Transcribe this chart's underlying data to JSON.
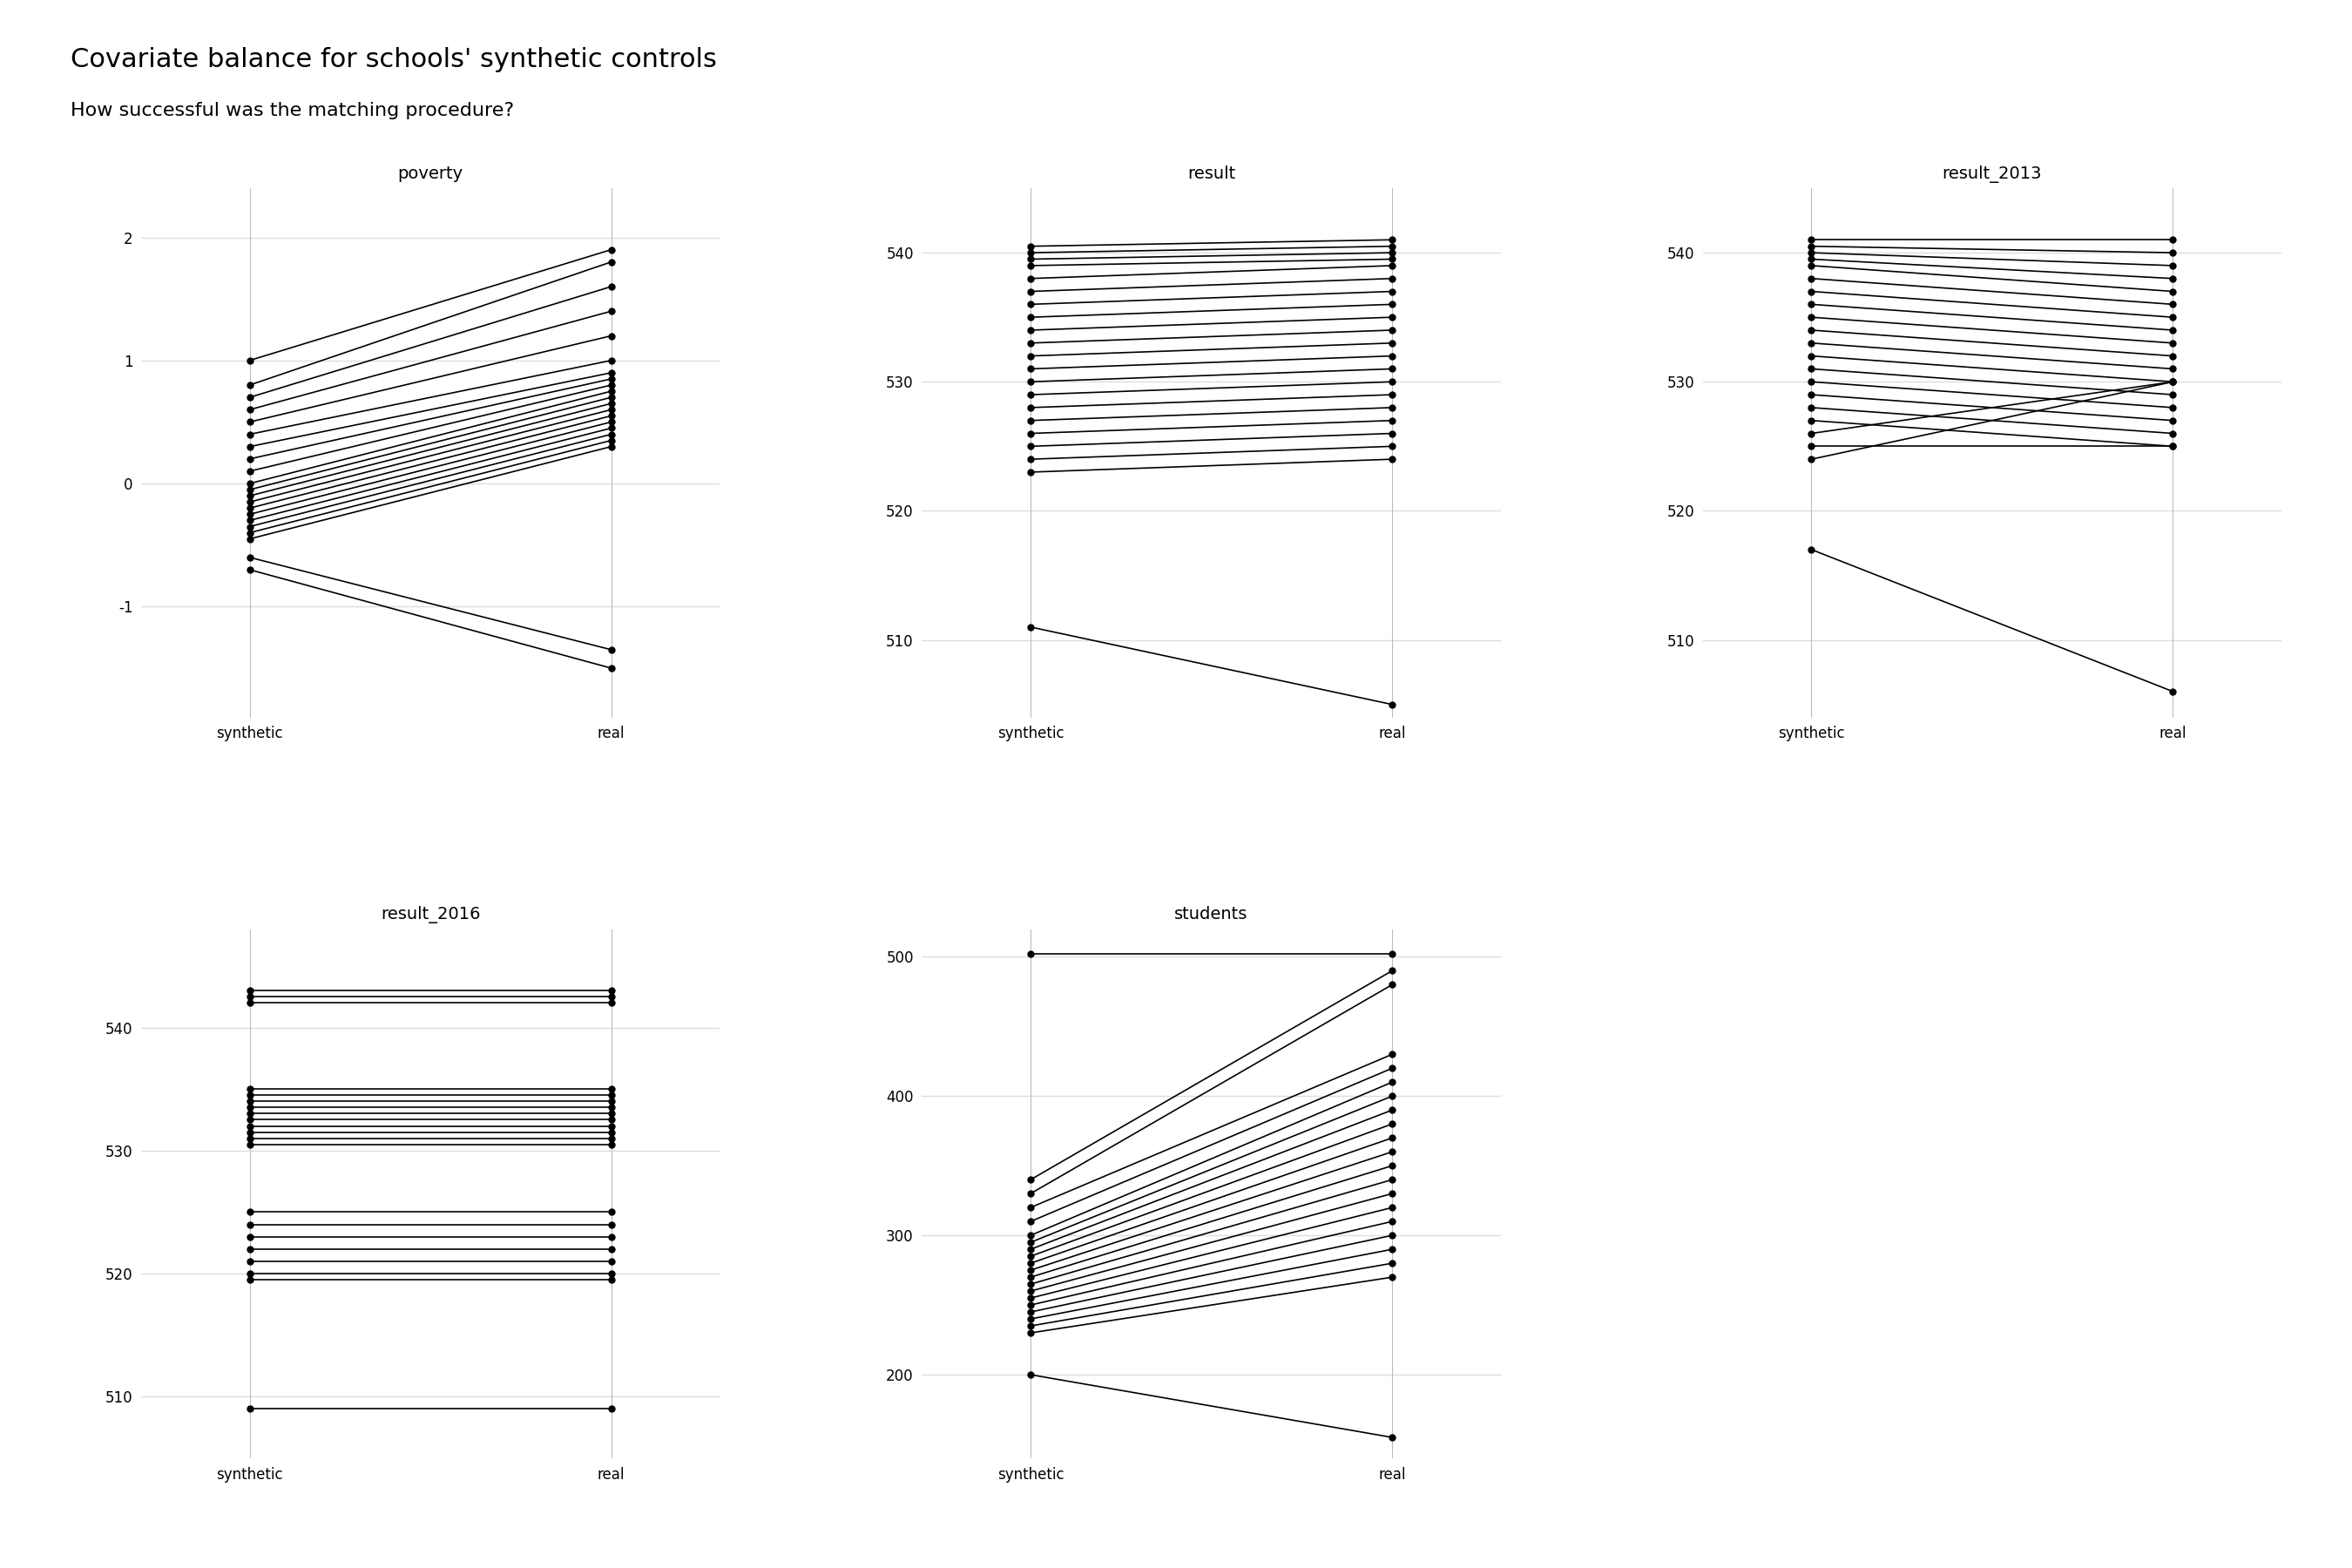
{
  "title": "Covariate balance for schools' synthetic controls",
  "subtitle": "How successful was the matching procedure?",
  "title_fontsize": 22,
  "subtitle_fontsize": 16,
  "subplot_title_fontsize": 14,
  "axis_label_fontsize": 12,
  "tick_fontsize": 12,
  "background_color": "#ffffff",
  "grid_color": "#dddddd",
  "line_color": "#000000",
  "marker_color": "#000000",
  "x_labels": [
    "synthetic",
    "real"
  ],
  "poverty_syn": [
    1.0,
    0.8,
    0.7,
    0.6,
    0.5,
    0.4,
    0.3,
    0.2,
    0.1,
    0.0,
    -0.05,
    -0.1,
    -0.15,
    -0.2,
    -0.25,
    -0.3,
    -0.35,
    -0.4,
    -0.45,
    -0.6,
    -0.7
  ],
  "poverty_real": [
    1.9,
    1.8,
    1.6,
    1.4,
    1.2,
    1.0,
    0.9,
    0.85,
    0.8,
    0.75,
    0.7,
    0.65,
    0.6,
    0.55,
    0.5,
    0.45,
    0.4,
    0.35,
    0.3,
    -1.35,
    -1.5
  ],
  "res_syn": [
    540.5,
    540.0,
    539.5,
    539.0,
    538.0,
    537.0,
    536.0,
    535.0,
    534.0,
    533.0,
    532.0,
    531.0,
    530.0,
    529.0,
    528.0,
    527.0,
    526.0,
    525.0,
    524.0,
    523.0,
    511.0
  ],
  "res_real": [
    541.0,
    540.5,
    540.0,
    539.5,
    539.0,
    538.0,
    537.0,
    536.0,
    535.0,
    534.0,
    533.0,
    532.0,
    531.0,
    530.0,
    529.0,
    528.0,
    527.0,
    526.0,
    525.0,
    524.0,
    505.0
  ],
  "r13_syn": [
    541.0,
    540.5,
    540.0,
    539.5,
    539.0,
    538.0,
    537.0,
    536.0,
    535.0,
    534.0,
    533.0,
    532.0,
    531.0,
    530.0,
    529.0,
    528.0,
    527.0,
    526.0,
    525.0,
    524.0,
    517.0
  ],
  "r13_real": [
    541.0,
    540.0,
    539.0,
    538.0,
    537.0,
    536.0,
    535.0,
    534.0,
    533.0,
    532.0,
    531.0,
    530.0,
    529.0,
    528.0,
    527.0,
    526.0,
    525.0,
    530.0,
    525.0,
    530.0,
    506.0
  ],
  "r16_syn": [
    543.0,
    542.5,
    542.0,
    535.0,
    534.5,
    534.0,
    533.5,
    533.0,
    532.5,
    532.0,
    531.5,
    531.0,
    530.5,
    525.0,
    524.0,
    523.0,
    522.0,
    521.0,
    520.0,
    519.5,
    509.0
  ],
  "r16_real": [
    543.0,
    542.5,
    542.0,
    535.0,
    534.5,
    534.0,
    533.5,
    533.0,
    532.5,
    532.0,
    531.5,
    531.0,
    530.5,
    525.0,
    524.0,
    523.0,
    522.0,
    521.0,
    520.0,
    519.5,
    509.0
  ],
  "stu_syn": [
    502.0,
    340.0,
    330.0,
    320.0,
    310.0,
    300.0,
    295.0,
    290.0,
    285.0,
    280.0,
    275.0,
    270.0,
    265.0,
    260.0,
    255.0,
    250.0,
    245.0,
    240.0,
    235.0,
    230.0,
    200.0
  ],
  "stu_real": [
    502.0,
    490.0,
    480.0,
    430.0,
    420.0,
    410.0,
    400.0,
    390.0,
    380.0,
    370.0,
    360.0,
    350.0,
    340.0,
    330.0,
    320.0,
    310.0,
    300.0,
    290.0,
    280.0,
    270.0,
    155.0
  ]
}
